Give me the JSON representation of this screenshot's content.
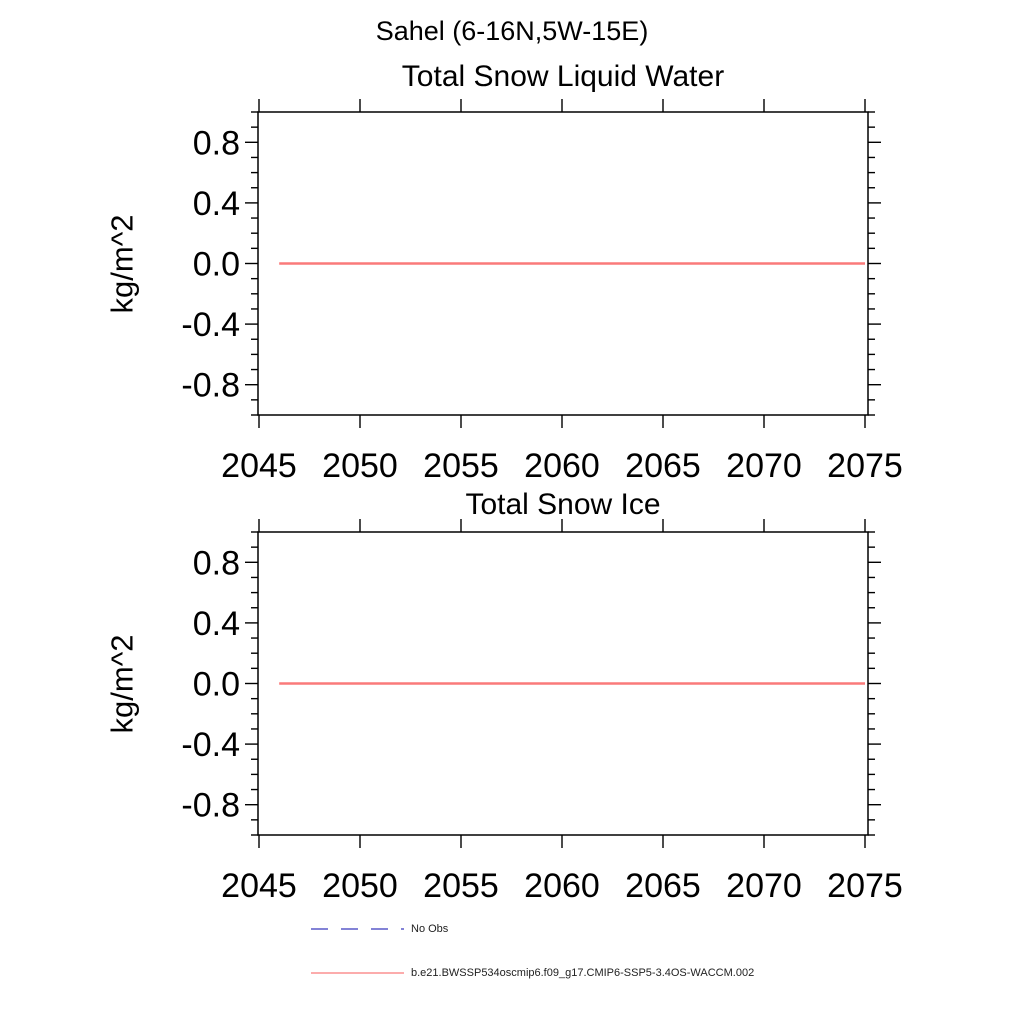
{
  "page_title": "Sahel (6-16N,5W-15E)",
  "colors": {
    "background": "#ffffff",
    "axis": "#000000",
    "series_red": "#fa7a7a",
    "no_obs_blue": "#5a5ac8"
  },
  "chart_data": [
    {
      "type": "line",
      "title": "Total Snow Liquid Water",
      "xlabel": "",
      "ylabel": "kg/m^2",
      "xlim": [
        2045,
        2075
      ],
      "ylim": [
        -1.0,
        1.0
      ],
      "grid": false,
      "x_ticks": [
        2045,
        2050,
        2055,
        2060,
        2065,
        2070,
        2075
      ],
      "x_tick_labels": [
        "2045",
        "2050",
        "2055",
        "2060",
        "2065",
        "2070",
        "2075"
      ],
      "y_ticks": [
        0.8,
        0.4,
        0.0,
        -0.4,
        -0.8
      ],
      "y_tick_labels": [
        "0.8",
        "0.4",
        "0.0",
        "-0.4",
        "-0.8"
      ],
      "y_minor_step": 0.1,
      "series": [
        {
          "name": "b.e21.BWSSP534oscmip6.f09_g17.CMIP6-SSP5-3.4OS-WACCM.002",
          "color": "#fa7a7a",
          "style": "solid",
          "x": [
            2046,
            2075
          ],
          "y": [
            0.0,
            0.0
          ]
        }
      ]
    },
    {
      "type": "line",
      "title": "Total Snow Ice",
      "xlabel": "",
      "ylabel": "kg/m^2",
      "xlim": [
        2045,
        2075
      ],
      "ylim": [
        -1.0,
        1.0
      ],
      "grid": false,
      "x_ticks": [
        2045,
        2050,
        2055,
        2060,
        2065,
        2070,
        2075
      ],
      "x_tick_labels": [
        "2045",
        "2050",
        "2055",
        "2060",
        "2065",
        "2070",
        "2075"
      ],
      "y_ticks": [
        0.8,
        0.4,
        0.0,
        -0.4,
        -0.8
      ],
      "y_tick_labels": [
        "0.8",
        "0.4",
        "0.0",
        "-0.4",
        "-0.8"
      ],
      "y_minor_step": 0.1,
      "series": [
        {
          "name": "b.e21.BWSSP534oscmip6.f09_g17.CMIP6-SSP5-3.4OS-WACCM.002",
          "color": "#fa7a7a",
          "style": "solid",
          "x": [
            2046,
            2075
          ],
          "y": [
            0.0,
            0.0
          ]
        }
      ]
    }
  ],
  "legend": {
    "items": [
      {
        "label": "No Obs",
        "color": "#5a5ac8",
        "line_style": "dashed"
      },
      {
        "label": "b.e21.BWSSP534oscmip6.f09_g17.CMIP6-SSP5-3.4OS-WACCM.002",
        "color": "#fa7a7a",
        "line_style": "solid"
      }
    ]
  }
}
